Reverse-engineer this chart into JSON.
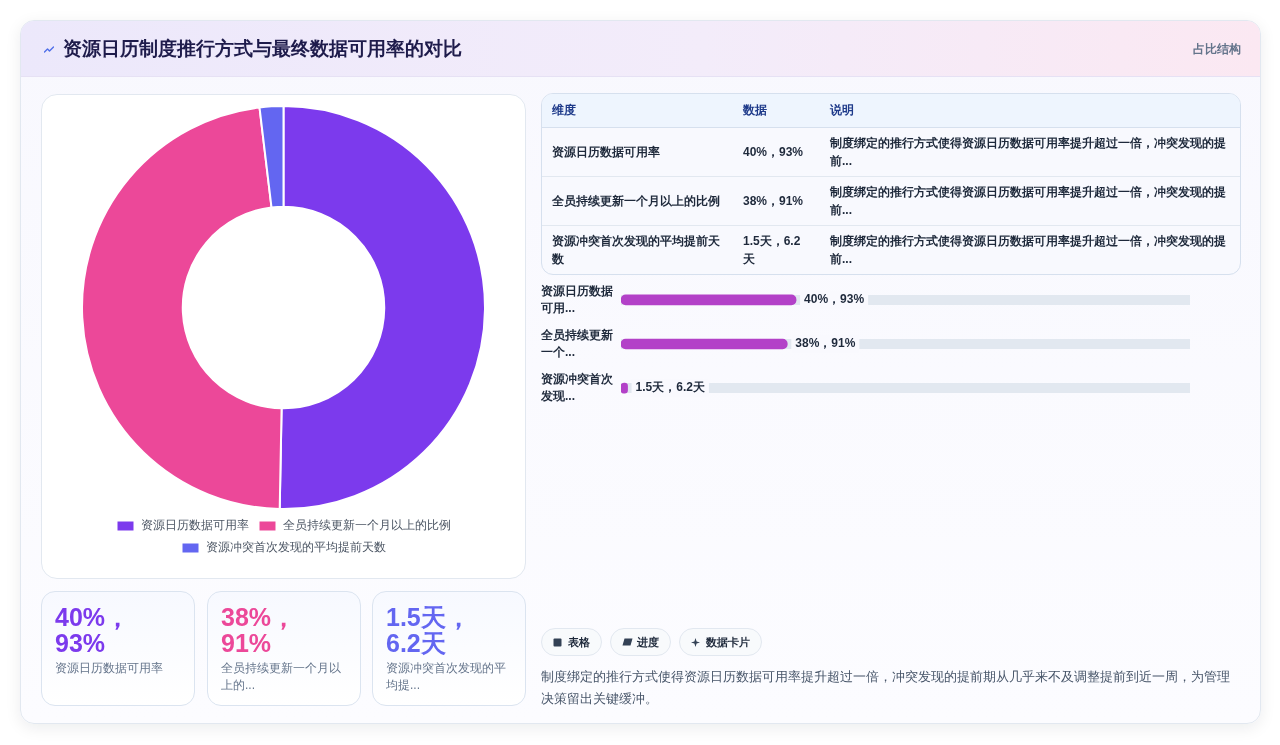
{
  "chart_data": [
    {
      "type": "donut",
      "title": "资源日历制度推行方式与最终数据可用率的对比",
      "categories": [
        "资源日历数据可用率",
        "全员持续更新一个月以上的比例",
        "资源冲突首次发现的平均提前天数"
      ],
      "values": [
        50.3,
        47.8,
        1.9
      ],
      "colors": [
        "#7c3aed",
        "#ec4899",
        "#6366f1"
      ],
      "legend": "bottom"
    },
    {
      "type": "other",
      "title": "占比结构",
      "annotations": [
        "维度",
        "数据",
        "说明",
        "资源日历数据可用率",
        "40%，93%",
        "制度绑定的推行方式使得资源日历数据可用率提升超过一倍，冲突发现的提前...",
        "全员持续更新一个月以上的比例",
        "38%，91%",
        "制度绑定的推行方式使得资源日历数据可用率提升超过一倍，冲突发现的提前...",
        "资源冲突首次发现的平均提前天数",
        "1.5天，6.2天",
        "制度绑定的推行方式使得资源日历数据可用率提升超过一倍，冲突发现的提前..."
      ]
    },
    {
      "type": "bar",
      "orientation": "horizontal",
      "categories": [
        "资源日历数据可用...",
        "全员持续更新一个...",
        "资源冲突首次发现..."
      ],
      "values": [
        40,
        38,
        1.5
      ],
      "color": "#b341c8",
      "value_labels": [
        "40%，93%",
        "38%，91%",
        "1.5天，6.2天"
      ],
      "xlim": [
        0,
        130
      ],
      "grid": "y",
      "tick_labels": "y"
    },
    {
      "type": "other",
      "categories": [
        "资源日历数据可用率",
        "全员持续更新一个月以上的...",
        "资源冲突首次发现的平均提..."
      ],
      "annotations": [
        "40%，93%",
        "38%，91%",
        "1.5天，6.2天"
      ]
    },
    {
      "type": "other",
      "categories": [
        "表格",
        "进度",
        "数据卡片"
      ],
      "annotations": [
        "制度绑定的推行方式使得资源日历数据可用率提升超过一倍，冲突发现的提前期从几乎来不及调整提前到近一周，为管理决策留出关键缓冲。"
      ]
    }
  ]
}
